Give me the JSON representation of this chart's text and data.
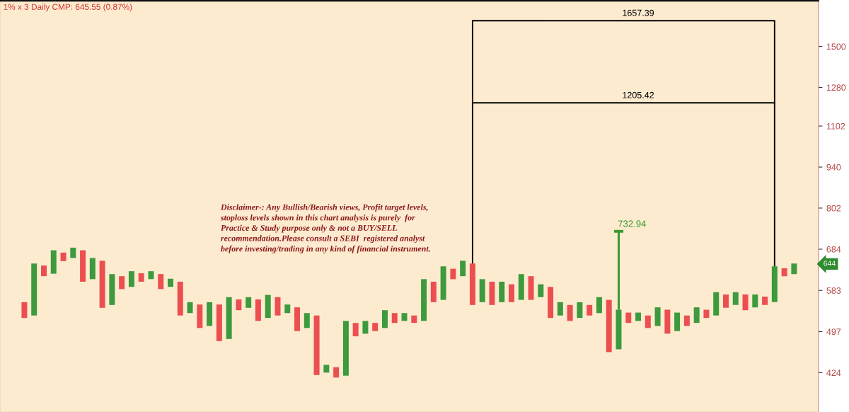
{
  "chart_data": {
    "type": "bar",
    "title": "1% x 3 Daily CMP: 645.55 (0.87%)",
    "categories": [
      null,
      null,
      null,
      null,
      null,
      null,
      null,
      null,
      null,
      null,
      null,
      null,
      null,
      null,
      null,
      null,
      null,
      null,
      null,
      null,
      null,
      null,
      null,
      null,
      null,
      null,
      null,
      null,
      null,
      null,
      null,
      null,
      null,
      null,
      null,
      null,
      null,
      null,
      null,
      null,
      null,
      null,
      null,
      null,
      null,
      null,
      null,
      null,
      null,
      null,
      null,
      null,
      null,
      null,
      null,
      null,
      null,
      null,
      null,
      null,
      null,
      null,
      null,
      null,
      null,
      null,
      null,
      null,
      null,
      null,
      null,
      null,
      null,
      null,
      null,
      null,
      null,
      null,
      null,
      null,
      null,
      null,
      null,
      null
    ],
    "series": [
      {
        "colors": [
          null,
          null,
          "#ec4f4f",
          "#3d9a3d",
          "#ec4f4f",
          "#3d9a3d",
          "#ec4f4f",
          "#3d9a3d",
          "#ec4f4f",
          "#3d9a3d",
          "#ec4f4f",
          "#3d9a3d",
          "#ec4f4f",
          "#3d9a3d",
          "#ec4f4f",
          "#3d9a3d",
          "#ec4f4f",
          "#3d9a3d",
          "#ec4f4f",
          "#3d9a3d",
          "#ec4f4f",
          "#3d9a3d",
          "#ec4f4f",
          "#3d9a3d",
          "#ec4f4f",
          "#3d9a3d",
          "#ec4f4f",
          "#3d9a3d",
          "#ec4f4f",
          "#3d9a3d",
          "#ec4f4f",
          "#3d9a3d",
          "#ec4f4f",
          "#3d9a3d",
          "#ec4f4f",
          "#3d9a3d",
          "#ec4f4f",
          "#3d9a3d",
          "#ec4f4f",
          "#3d9a3d",
          "#ec4f4f",
          "#3d9a3d",
          "#ec4f4f",
          "#3d9a3d",
          "#ec4f4f",
          "#3d9a3d",
          "#ec4f4f",
          "#3d9a3d",
          "#ec4f4f",
          "#3d9a3d",
          "#ec4f4f",
          "#3d9a3d",
          "#ec4f4f",
          "#3d9a3d",
          "#ec4f4f",
          "#3d9a3d",
          "#ec4f4f",
          "#3d9a3d",
          "#ec4f4f",
          "#3d9a3d",
          "#ec4f4f",
          "#3d9a3d",
          "#ec4f4f",
          "#3d9a3d",
          "#ec4f4f",
          "#3d9a3d",
          "#ec4f4f",
          "#3d9a3d",
          "#ec4f4f",
          "#3d9a3d",
          "#ec4f4f",
          "#3d9a3d",
          "#ec4f4f",
          "#3d9a3d",
          "#ec4f4f",
          "#3d9a3d",
          "#ec4f4f",
          "#3d9a3d",
          "#ec4f4f",
          "#3d9a3d",
          "#ec4f4f",
          "#3d9a3d",
          null,
          null
        ],
        "base": [
          null,
          null,
          524,
          529,
          616,
          622,
          653,
          661,
          603,
          609,
          545,
          551,
          586,
          591,
          603,
          609,
          586,
          591,
          529,
          534,
          504,
          508,
          479,
          483,
          540,
          545,
          518,
          524,
          529,
          534,
          498,
          504,
          420,
          424,
          416,
          419,
          488,
          493,
          498,
          504,
          514,
          518,
          514,
          518,
          557,
          562,
          609,
          616,
          551,
          557,
          551,
          557,
          557,
          562,
          562,
          568,
          524,
          529,
          518,
          524,
          529,
          534,
          459,
          464,
          514,
          518,
          504,
          508,
          493,
          498,
          508,
          514,
          524,
          529,
          545,
          551,
          540,
          546,
          551,
          557,
          616,
          621,
          null,
          null
        ],
        "values": [
          null,
          null,
          33,
          118,
          26,
          59,
          22,
          27,
          78,
          52,
          109,
          70,
          30,
          37,
          20,
          19,
          35,
          19,
          74,
          23,
          48,
          49,
          73,
          85,
          23,
          23,
          45,
          49,
          39,
          18,
          48,
          30,
          109,
          13,
          17,
          99,
          26,
          25,
          16,
          36,
          20,
          16,
          15,
          91,
          46,
          78,
          25,
          38,
          96,
          52,
          52,
          46,
          40,
          59,
          54,
          29,
          67,
          28,
          33,
          33,
          22,
          34,
          103,
          77,
          21,
          17,
          25,
          38,
          48,
          37,
          21,
          32,
          17,
          50,
          29,
          28,
          34,
          28,
          18,
          83,
          19,
          26,
          null,
          null
        ]
      },
      {
        "type": "line",
        "color": "#000000",
        "values": [
          null,
          null,
          null,
          null,
          null,
          null,
          null,
          null,
          null,
          null,
          null,
          null,
          null,
          null,
          null,
          null,
          null,
          null,
          null,
          null,
          null,
          null,
          null,
          null,
          null,
          null,
          null,
          null,
          null,
          null,
          null,
          null,
          null,
          null,
          null,
          null,
          null,
          null,
          null,
          null,
          null,
          null,
          null,
          null,
          null,
          null,
          null,
          null,
          1657.39,
          1657.39,
          1657.39,
          1657.39,
          1657.39,
          1657.39,
          1657.39,
          1657.39,
          1657.39,
          1657.39,
          1657.39,
          1657.39,
          1657.39,
          1657.39,
          1657.39,
          1657.39,
          1657.39,
          1657.39,
          1657.39,
          1657.39,
          1657.39,
          1657.39,
          1657.39,
          1657.39,
          1657.39,
          1657.39,
          1657.39,
          1657.39,
          1657.39,
          1657.39,
          1657.39,
          1657.39,
          null,
          null,
          null,
          null
        ],
        "errors": [
          null,
          null,
          null,
          null,
          null,
          null,
          null,
          null,
          null,
          null,
          null,
          null,
          null,
          null,
          null,
          null,
          null,
          null,
          null,
          null,
          null,
          null,
          null,
          null,
          null,
          null,
          null,
          null,
          null,
          null,
          null,
          null,
          null,
          null,
          null,
          null,
          null,
          null,
          null,
          null,
          null,
          null,
          null,
          null,
          null,
          null,
          null,
          null,
          [
            647,
            1657.39
          ],
          null,
          null,
          null,
          null,
          null,
          null,
          null,
          null,
          null,
          null,
          null,
          null,
          null,
          null,
          null,
          null,
          null,
          null,
          null,
          null,
          null,
          null,
          null,
          null,
          null,
          null,
          null,
          null,
          null,
          null,
          [
            640,
            1657.39
          ],
          null,
          null,
          null,
          null
        ],
        "value_labels": [
          null,
          null,
          null,
          null,
          null,
          null,
          null,
          null,
          null,
          null,
          null,
          null,
          null,
          null,
          null,
          null,
          null,
          null,
          null,
          null,
          null,
          null,
          null,
          null,
          null,
          null,
          null,
          null,
          null,
          null,
          null,
          null,
          null,
          null,
          null,
          null,
          null,
          null,
          null,
          null,
          null,
          null,
          null,
          null,
          null,
          null,
          null,
          null,
          null,
          null,
          null,
          null,
          null,
          null,
          null,
          null,
          null,
          null,
          null,
          null,
          null,
          null,
          null,
          null,
          null,
          "1657.39",
          null,
          null,
          null,
          null,
          null,
          null,
          null,
          null,
          null,
          null,
          null,
          null,
          null,
          null,
          null,
          null,
          null,
          null
        ]
      },
      {
        "type": "line",
        "color": "#000000",
        "values": [
          null,
          null,
          null,
          null,
          null,
          null,
          null,
          null,
          null,
          null,
          null,
          null,
          null,
          null,
          null,
          null,
          null,
          null,
          null,
          null,
          null,
          null,
          null,
          null,
          null,
          null,
          null,
          null,
          null,
          null,
          null,
          null,
          null,
          null,
          null,
          null,
          null,
          null,
          null,
          null,
          null,
          null,
          null,
          null,
          null,
          null,
          null,
          null,
          1205.42,
          1205.42,
          1205.42,
          1205.42,
          1205.42,
          1205.42,
          1205.42,
          1205.42,
          1205.42,
          1205.42,
          1205.42,
          1205.42,
          1205.42,
          1205.42,
          1205.42,
          1205.42,
          1205.42,
          1205.42,
          1205.42,
          1205.42,
          1205.42,
          1205.42,
          1205.42,
          1205.42,
          1205.42,
          1205.42,
          1205.42,
          1205.42,
          1205.42,
          1205.42,
          1205.42,
          1205.42,
          null,
          null,
          null,
          null
        ],
        "value_labels": [
          null,
          null,
          null,
          null,
          null,
          null,
          null,
          null,
          null,
          null,
          null,
          null,
          null,
          null,
          null,
          null,
          null,
          null,
          null,
          null,
          null,
          null,
          null,
          null,
          null,
          null,
          null,
          null,
          null,
          null,
          null,
          null,
          null,
          null,
          null,
          null,
          null,
          null,
          null,
          null,
          null,
          null,
          null,
          null,
          null,
          null,
          null,
          null,
          null,
          null,
          null,
          null,
          null,
          null,
          null,
          null,
          null,
          null,
          null,
          null,
          null,
          null,
          null,
          null,
          null,
          "1205.42",
          null,
          null,
          null,
          null,
          null,
          null,
          null,
          null,
          null,
          null,
          null,
          null,
          null,
          null,
          null,
          null,
          null,
          null
        ]
      },
      {
        "type": "scatter",
        "color": "#3a9a2f",
        "values": [
          null,
          null,
          null,
          null,
          null,
          null,
          null,
          null,
          null,
          null,
          null,
          null,
          null,
          null,
          null,
          null,
          null,
          null,
          null,
          null,
          null,
          null,
          null,
          null,
          null,
          null,
          null,
          null,
          null,
          null,
          null,
          null,
          null,
          null,
          null,
          null,
          null,
          null,
          null,
          null,
          null,
          null,
          null,
          null,
          null,
          null,
          null,
          null,
          null,
          null,
          null,
          null,
          null,
          null,
          null,
          null,
          null,
          null,
          null,
          null,
          null,
          null,
          null,
          732.94,
          null,
          null,
          null,
          null,
          null,
          null,
          null,
          null,
          null,
          null,
          null,
          null,
          null,
          null,
          null,
          null,
          null,
          null,
          null,
          null
        ],
        "errors": [
          null,
          null,
          null,
          null,
          null,
          null,
          null,
          null,
          null,
          null,
          null,
          null,
          null,
          null,
          null,
          null,
          null,
          null,
          null,
          null,
          null,
          null,
          null,
          null,
          null,
          null,
          null,
          null,
          null,
          null,
          null,
          null,
          null,
          null,
          null,
          null,
          null,
          null,
          null,
          null,
          null,
          null,
          null,
          null,
          null,
          null,
          null,
          null,
          null,
          null,
          null,
          null,
          null,
          null,
          null,
          null,
          null,
          null,
          null,
          null,
          null,
          null,
          null,
          [
            541,
            732.94
          ],
          null,
          null,
          null,
          null,
          null,
          null,
          null,
          null,
          null,
          null,
          null,
          null,
          null,
          null,
          null,
          null,
          null,
          null,
          null,
          null
        ],
        "value_labels": [
          null,
          null,
          null,
          null,
          null,
          null,
          null,
          null,
          null,
          null,
          null,
          null,
          null,
          null,
          null,
          null,
          null,
          null,
          null,
          null,
          null,
          null,
          null,
          null,
          null,
          null,
          null,
          null,
          null,
          null,
          null,
          null,
          null,
          null,
          null,
          null,
          null,
          null,
          null,
          null,
          null,
          null,
          null,
          null,
          null,
          null,
          null,
          null,
          null,
          null,
          null,
          null,
          null,
          null,
          null,
          null,
          null,
          null,
          null,
          null,
          null,
          null,
          null,
          "732.94",
          null,
          null,
          null,
          null,
          null,
          null,
          null,
          null,
          null,
          null,
          null,
          null,
          null,
          null,
          null,
          null,
          null,
          null,
          null,
          null
        ]
      }
    ],
    "log": true,
    "ylim": [
      364,
      1790
    ],
    "yticks": [
      424,
      497,
      583,
      684,
      802,
      940,
      1102,
      1280,
      1500
    ],
    "tick_labels": "y",
    "annotations": [
      "Disclaimer-: Any Bullish/Bearish views, Profit target levels,\nstoploss levels shown in this chart analysis is purely  for\nPractice & Study purpose only & not a BUY/SELL\nrecommendation.Please consult a SEBI  registered analyst\nbefore investing/trading in any kind of financial instrument.",
      "644"
    ]
  }
}
